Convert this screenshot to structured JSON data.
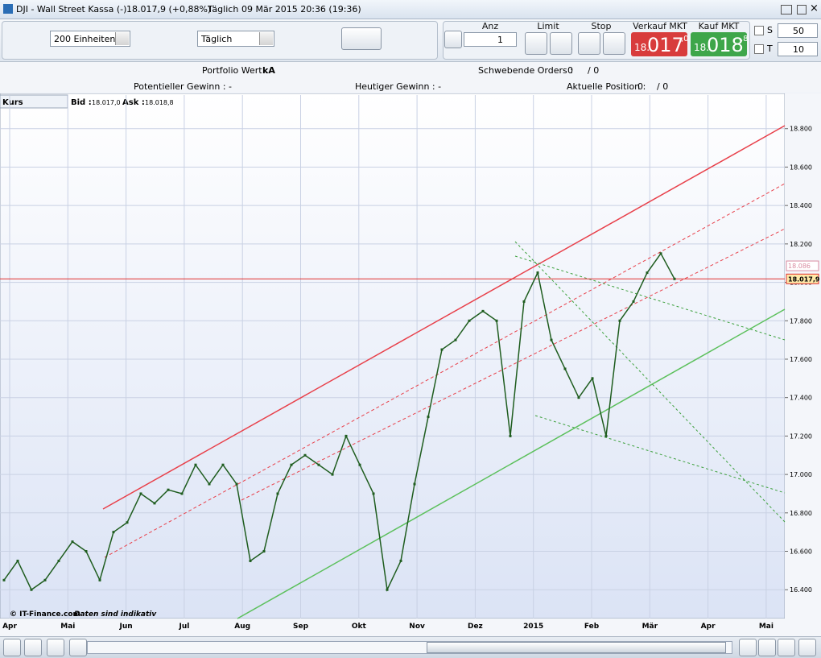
{
  "window": {
    "title": "DJI - Wall Street Kassa (-)",
    "last": "18.017,9 (+0,88%)",
    "period": "Täglich",
    "timestamp": "09 Mär 2015 20:36 (19:36)"
  },
  "toolbar": {
    "units": "200 Einheiten",
    "interval": "Täglich",
    "anz_label": "Anz",
    "anz_value": "1",
    "limit_label": "Limit",
    "stop_label": "Stop",
    "sell_label": "Verkauf MKT",
    "sell_price": {
      "prefix": "18.",
      "main": "017",
      "suffix": ",0"
    },
    "buy_label": "Kauf MKT",
    "buy_price": {
      "prefix": "18.",
      "main": "018",
      "suffix": ",8"
    },
    "s_label": "S",
    "s_value": "50",
    "t_label": "T",
    "t_value": "10"
  },
  "info": {
    "portfolio_label": "Portfolio Wert :",
    "portfolio_value": "kA",
    "pending_label": "Schwebende Orders :",
    "pending_a": "0",
    "pending_b": "/ 0",
    "potential_label": "Potentieller Gewinn : -",
    "today_label": "Heutiger Gewinn : -",
    "position_label": "Aktuelle Position :",
    "position_a": "0",
    "position_b": "/ 0"
  },
  "chart_header": {
    "name": "Kurs",
    "bid_label": "Bid :",
    "bid": "18.017,0",
    "ask_label": "Ask :",
    "ask": "18.018,8"
  },
  "chart_data": {
    "type": "line",
    "color": "#1f5d1f",
    "values": [
      16450,
      16550,
      16400,
      16450,
      16550,
      16650,
      16600,
      16450,
      16700,
      16750,
      16900,
      16850,
      16920,
      16900,
      17050,
      16950,
      17050,
      16950,
      16550,
      16600,
      16900,
      17050,
      17100,
      17050,
      17000,
      17200,
      17050,
      16900,
      16400,
      16550,
      16950,
      17300,
      17650,
      17700,
      17800,
      17850,
      17800,
      17200,
      17900,
      18050,
      17700,
      17550,
      17400,
      17500,
      17200,
      17800,
      17900,
      18050,
      18150,
      18017.9
    ],
    "ylim": [
      16250,
      18975
    ],
    "yticks": [
      {
        "value": 16400,
        "label": "16.400"
      },
      {
        "value": 16600,
        "label": "16.600"
      },
      {
        "value": 16800,
        "label": "16.800"
      },
      {
        "value": 17000,
        "label": "17.000"
      },
      {
        "value": 17200,
        "label": "17.200"
      },
      {
        "value": 17400,
        "label": "17.400"
      },
      {
        "value": 17600,
        "label": "17.600"
      },
      {
        "value": 17800,
        "label": "17.800"
      },
      {
        "value": 18000,
        "label": "18.000"
      },
      {
        "value": 18200,
        "label": "18.200"
      },
      {
        "value": 18400,
        "label": "18.400"
      },
      {
        "value": 18600,
        "label": "18.600"
      },
      {
        "value": 18800,
        "label": "18.800"
      }
    ],
    "months": [
      "Apr",
      "Mai",
      "Jun",
      "Jul",
      "Aug",
      "Sep",
      "Okt",
      "Nov",
      "Dez",
      "2015",
      "Feb",
      "Mär",
      "Apr",
      "Mai"
    ],
    "price_labels": [
      {
        "value": 18086,
        "label": "18.086",
        "color": "#d98aa0"
      },
      {
        "value": 18017.9,
        "label": "18.017,9",
        "color": "#e03030"
      }
    ],
    "grid": true,
    "watermark": "© IT-Finance.com",
    "note": "Daten sind indikativ"
  }
}
